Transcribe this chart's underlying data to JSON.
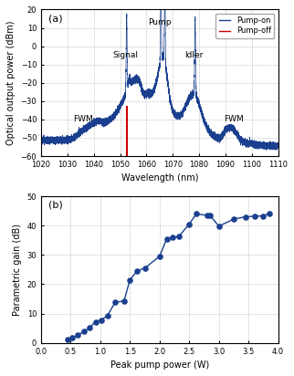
{
  "fig_title_a": "(a)",
  "fig_title_b": "(b)",
  "panel_a": {
    "xlabel": "Wavelength (nm)",
    "ylabel": "Optical output power (dBm)",
    "xlim": [
      1020,
      1110
    ],
    "ylim": [
      -60,
      20
    ],
    "yticks": [
      -60,
      -50,
      -40,
      -30,
      -20,
      -10,
      0,
      10,
      20
    ],
    "xticks": [
      1020,
      1030,
      1040,
      1050,
      1060,
      1070,
      1080,
      1090,
      1100,
      1110
    ],
    "line_color": "#1a3f8f",
    "red_line_color": "#cc0000",
    "signal_wl": 1052.5,
    "pump_wl": 1065.5,
    "idler_wl": 1078.5,
    "legend_labels": [
      "Pump-on",
      "Pump-off"
    ],
    "legend_colors": [
      "#1a3f8f",
      "#cc0000"
    ]
  },
  "panel_b": {
    "xlabel": "Peak pump power (W)",
    "ylabel": "Parametric gain (dB)",
    "xlim": [
      0,
      4
    ],
    "ylim": [
      0,
      50
    ],
    "yticks": [
      0,
      10,
      20,
      30,
      40,
      50
    ],
    "xticks": [
      0,
      0.5,
      1.0,
      1.5,
      2.0,
      2.5,
      3.0,
      3.5,
      4.0
    ],
    "line_color": "#1a3f8f",
    "marker_color": "#1a3f8f",
    "data_x": [
      0.45,
      0.52,
      0.62,
      0.72,
      0.82,
      0.92,
      1.02,
      1.12,
      1.25,
      1.4,
      1.5,
      1.62,
      1.75,
      2.0,
      2.12,
      2.22,
      2.32,
      2.5,
      2.62,
      2.8,
      2.85,
      3.0,
      3.25,
      3.45,
      3.6,
      3.75,
      3.85
    ],
    "data_y": [
      1.0,
      1.8,
      2.6,
      3.8,
      5.2,
      7.2,
      7.8,
      9.3,
      13.8,
      14.3,
      21.5,
      24.5,
      25.5,
      29.5,
      35.5,
      36.0,
      36.2,
      40.5,
      44.0,
      43.5,
      43.5,
      39.8,
      42.2,
      43.0,
      43.2,
      43.3,
      44.2
    ]
  }
}
